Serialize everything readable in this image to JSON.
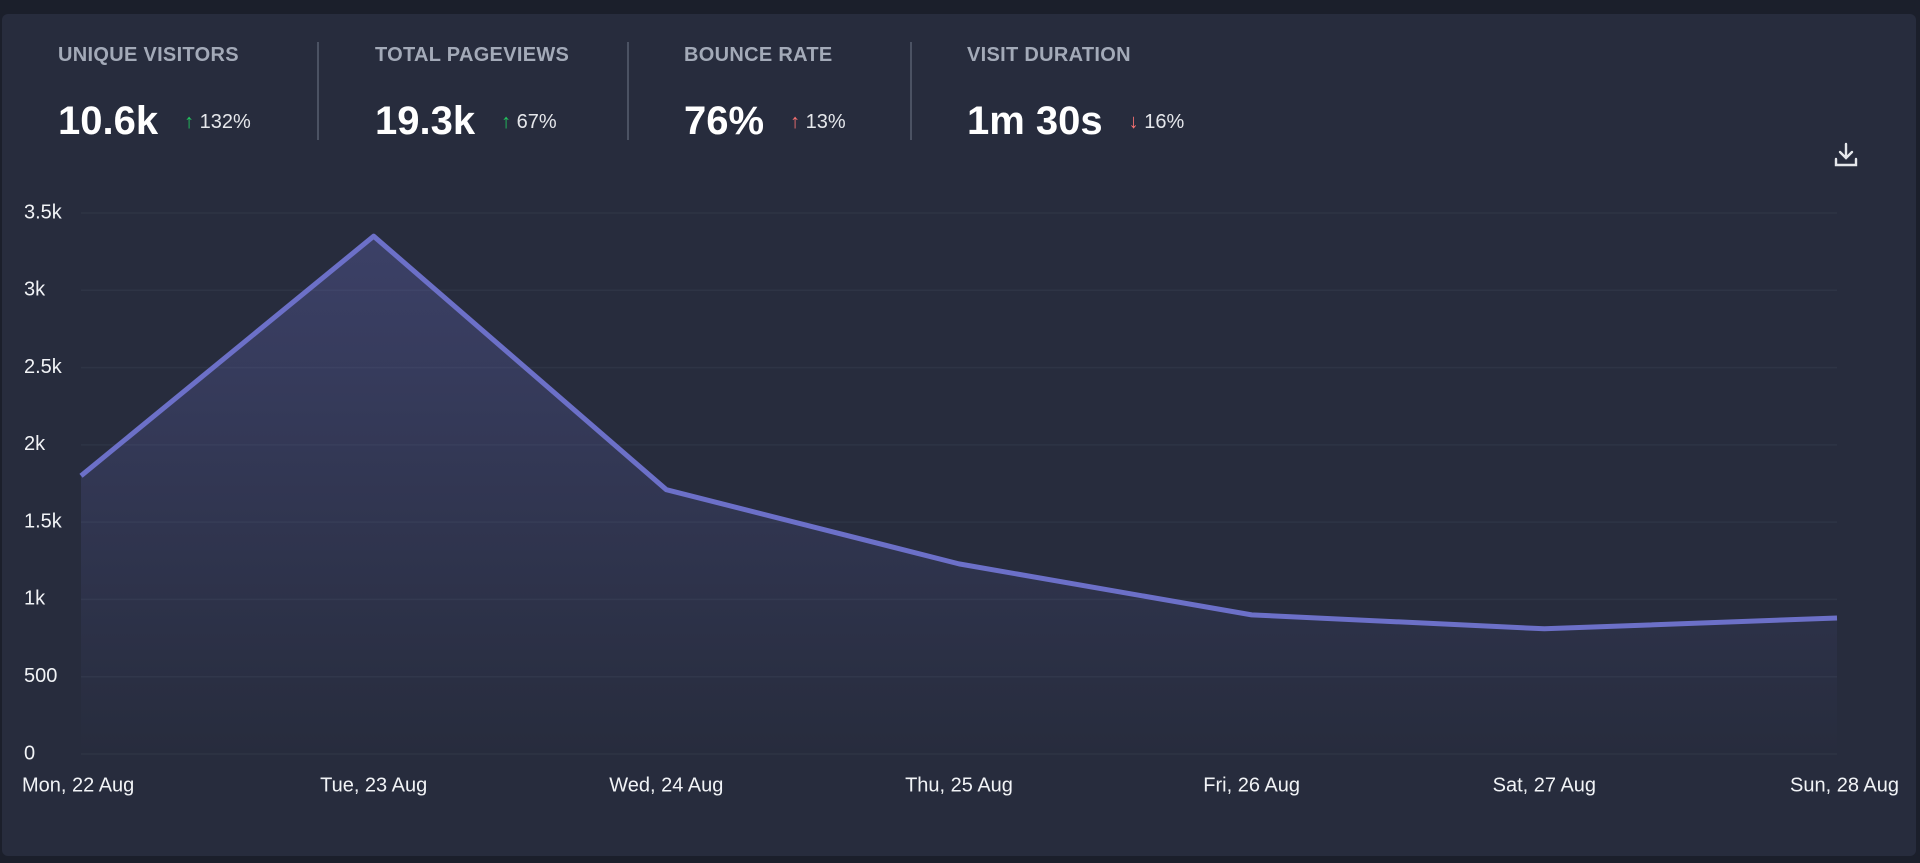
{
  "stats": [
    {
      "label": "UNIQUE VISITORS",
      "value": "10.6k",
      "change": "132%",
      "trend": "up"
    },
    {
      "label": "TOTAL PAGEVIEWS",
      "value": "19.3k",
      "change": "67%",
      "trend": "up"
    },
    {
      "label": "BOUNCE RATE",
      "value": "76%",
      "change": "13%",
      "trend": "up-bad"
    },
    {
      "label": "VISIT DURATION",
      "value": "1m 30s",
      "change": "16%",
      "trend": "down"
    }
  ],
  "chart_data": {
    "type": "line",
    "categories": [
      "Mon, 22 Aug",
      "Tue, 23 Aug",
      "Wed, 24 Aug",
      "Thu, 25 Aug",
      "Fri, 26 Aug",
      "Sat, 27 Aug",
      "Sun, 28 Aug"
    ],
    "values": [
      1800,
      3350,
      1710,
      1230,
      900,
      810,
      880
    ],
    "color": "#6c70c8",
    "ylim": [
      0,
      3500
    ],
    "yticks": [
      0,
      500,
      {
        "value": 1000,
        "label": "1k"
      },
      {
        "value": 1500,
        "label": "1.5k"
      },
      {
        "value": 2000,
        "label": "2k"
      },
      {
        "value": 2500,
        "label": "2.5k"
      },
      {
        "value": 3000,
        "label": "3k"
      },
      {
        "value": 3500,
        "label": "3.5k"
      }
    ],
    "grid": true
  }
}
